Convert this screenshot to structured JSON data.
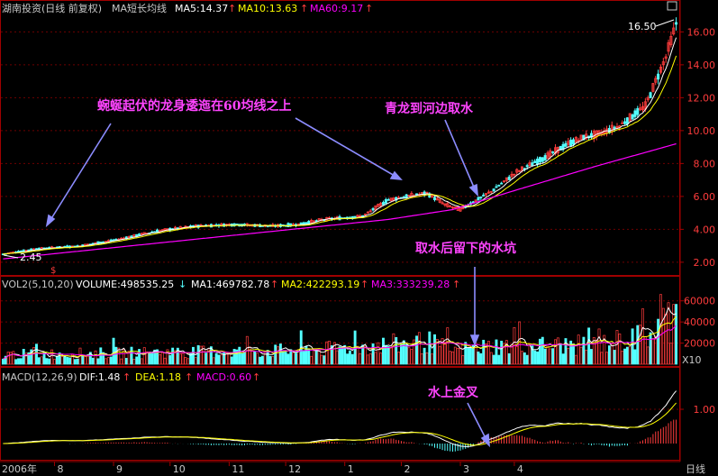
{
  "colors": {
    "background": "#000000",
    "frame": "#a00000",
    "grid": "#6e0000",
    "up": "#ff3c3c",
    "down": "#54ffff",
    "ma_fast": "#ffffff",
    "ma_mid": "#ffff00",
    "ma_slow": "#ff00ff",
    "text": "#c8c8c8",
    "annotation": "#ff44ff",
    "arrow": "#8c8cff"
  },
  "chart_data": [
    {
      "type": "candlestick",
      "panel": "price",
      "title": "湖南投资(日线 前复权)",
      "indicator_label": "MA短长均线",
      "legend": [
        {
          "label": "MA5:14.37",
          "color": "#ffffff"
        },
        {
          "label": "MA10:13.63",
          "color": "#ffff00"
        },
        {
          "label": "MA60:9.17",
          "color": "#ff00ff"
        }
      ],
      "ylim": [
        1.5,
        17.5
      ],
      "yticks": [
        "2.00",
        "4.00",
        "6.00",
        "8.00",
        "10.00",
        "12.00",
        "14.00",
        "16.00"
      ],
      "high_marker": "16.50",
      "low_marker": "2.45",
      "close_path": [
        [
          0,
          2.5
        ],
        [
          12,
          2.8
        ],
        [
          30,
          3.0
        ],
        [
          45,
          3.4
        ],
        [
          60,
          3.9
        ],
        [
          75,
          4.2
        ],
        [
          90,
          4.3
        ],
        [
          105,
          4.2
        ],
        [
          115,
          4.3
        ],
        [
          125,
          4.6
        ],
        [
          140,
          4.8
        ],
        [
          150,
          5.8
        ],
        [
          157,
          6.0
        ],
        [
          165,
          6.2
        ],
        [
          172,
          5.5
        ],
        [
          178,
          5.2
        ],
        [
          190,
          6.3
        ],
        [
          200,
          7.5
        ],
        [
          210,
          8.3
        ],
        [
          220,
          9.2
        ],
        [
          226,
          9.6
        ],
        [
          232,
          9.8
        ],
        [
          240,
          10.3
        ],
        [
          250,
          11.5
        ],
        [
          258,
          14.5
        ],
        [
          262,
          16.5
        ]
      ],
      "ma60_path": [
        [
          0,
          2.2
        ],
        [
          50,
          3.0
        ],
        [
          100,
          3.8
        ],
        [
          150,
          4.6
        ],
        [
          175,
          5.2
        ],
        [
          200,
          6.4
        ],
        [
          230,
          7.8
        ],
        [
          262,
          9.2
        ]
      ]
    },
    {
      "type": "bar",
      "panel": "volume",
      "title": "VOL2(5,10,20)",
      "legend": [
        {
          "label": "VOLUME:498535.25",
          "color": "#ffffff"
        },
        {
          "label": "MA1:469782.78",
          "color": "#ffffff"
        },
        {
          "label": "MA2:422293.19",
          "color": "#ffff00"
        },
        {
          "label": "MA3:333239.28",
          "color": "#ff00ff"
        }
      ],
      "ylim": [
        0,
        70000
      ],
      "yticks": [
        "20000",
        "40000",
        "60000"
      ],
      "unit": "X10"
    },
    {
      "type": "bar",
      "panel": "macd",
      "title": "MACD(12,26,9)",
      "legend": [
        {
          "label": "DIF:1.48",
          "color": "#ffffff"
        },
        {
          "label": "DEA:1.18",
          "color": "#ffff00"
        },
        {
          "label": "MACD:0.60",
          "color": "#ff00ff"
        }
      ],
      "yticks": [
        "1.00"
      ],
      "x_tick_labels": [
        "2006年",
        "8",
        "9",
        "10",
        "11",
        "12",
        "1",
        "2",
        "3",
        "4"
      ],
      "period_label": "日线"
    }
  ],
  "annotations": [
    {
      "text": "蜿蜒起伏的龙身逶迤在60均线之上"
    },
    {
      "text": "青龙到河边取水"
    },
    {
      "text": "取水后留下的水坑"
    },
    {
      "text": "水上金叉"
    }
  ]
}
